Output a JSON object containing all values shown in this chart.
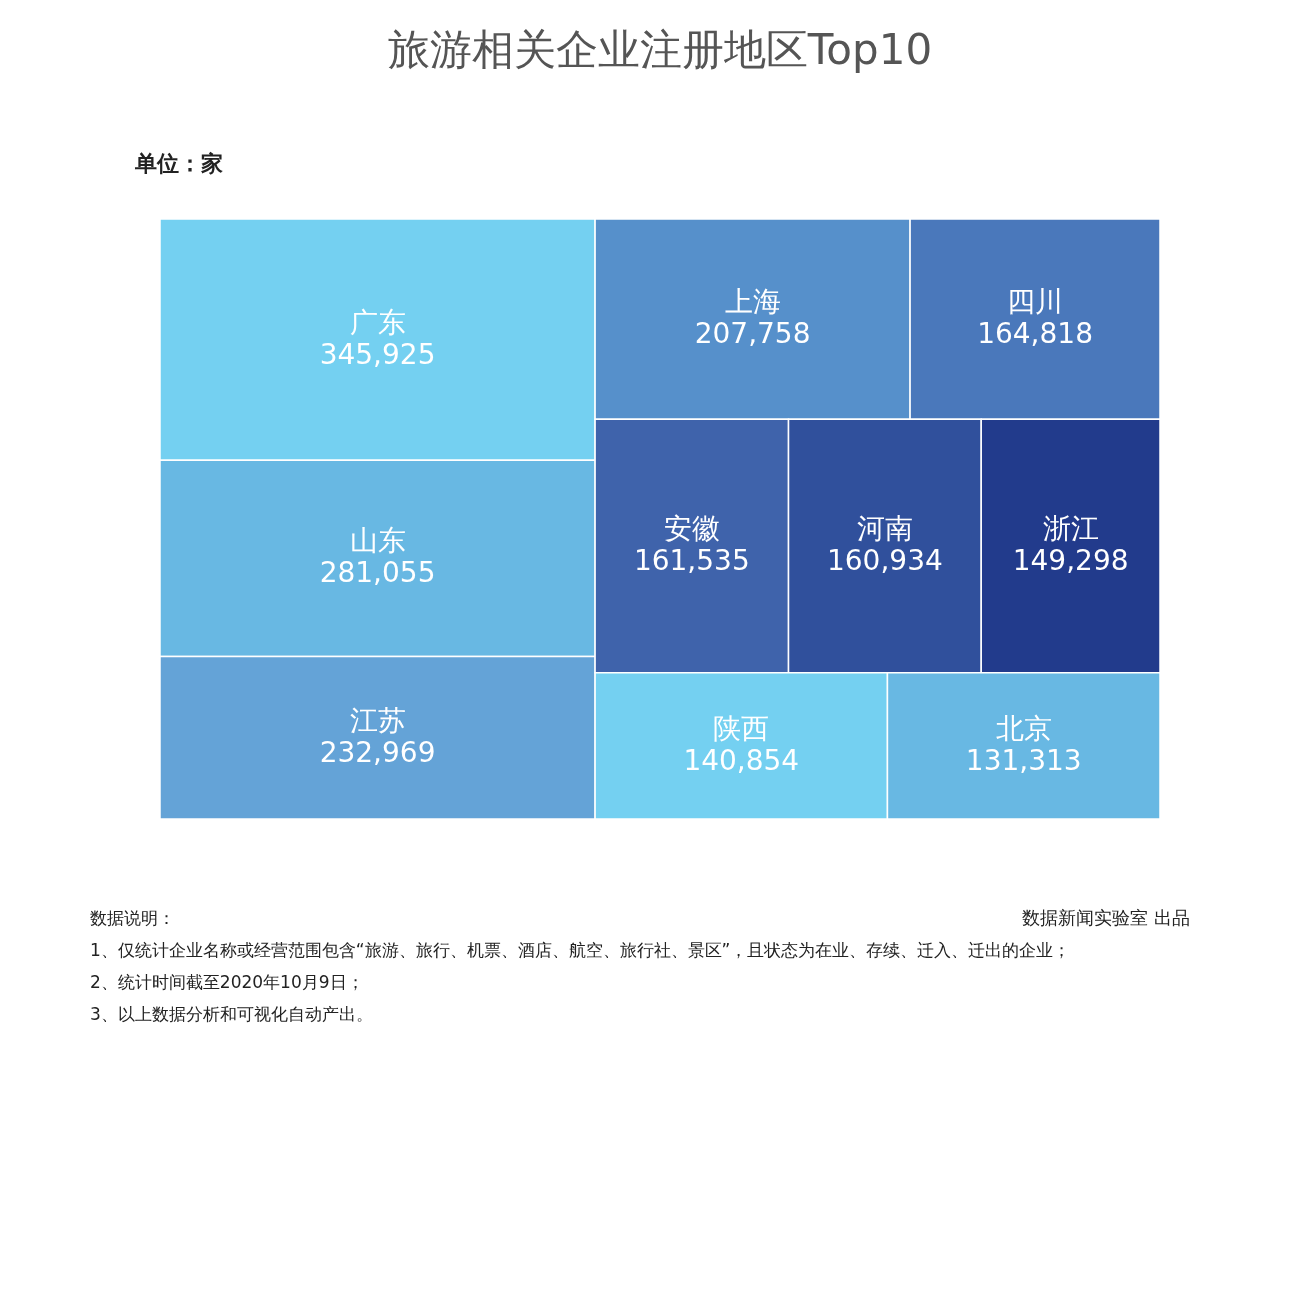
{
  "chart_data": {
    "type": "other",
    "title": "旅游相关企业注册地区Top10",
    "categories": [
      "广东",
      "山东",
      "江苏",
      "上海",
      "四川",
      "安徽",
      "河南",
      "浙江",
      "陕西",
      "北京"
    ],
    "values": [
      345925,
      281055,
      232969,
      207758,
      164818,
      161535,
      160934,
      149298,
      140854,
      131313
    ],
    "colors": [
      "#74d0f1",
      "#68b8e3",
      "#64a3d7",
      "#5690cb",
      "#4a78bb",
      "#3f63ab",
      "#30509c",
      "#223b8c",
      "#74d0f1",
      "#68b8e3"
    ],
    "value_labels": [
      "345,925",
      "281,055",
      "232,969",
      "207,758",
      "164,818",
      "161,535",
      "160,934",
      "149,298",
      "140,854",
      "131,313"
    ],
    "annotations": [
      "单位：家",
      "数据说明：",
      "1、仅统计企业名称或经营范围包含“旅游、旅行、机票、酒店、航空、旅行社、景区”，且状态为在业、存续、迁入、迁出的企业；",
      "2、统计时间截至2020年10月9日；",
      "3、以上数据分析和可视化自动产出。",
      "数据新闻实验室 出品"
    ]
  }
}
